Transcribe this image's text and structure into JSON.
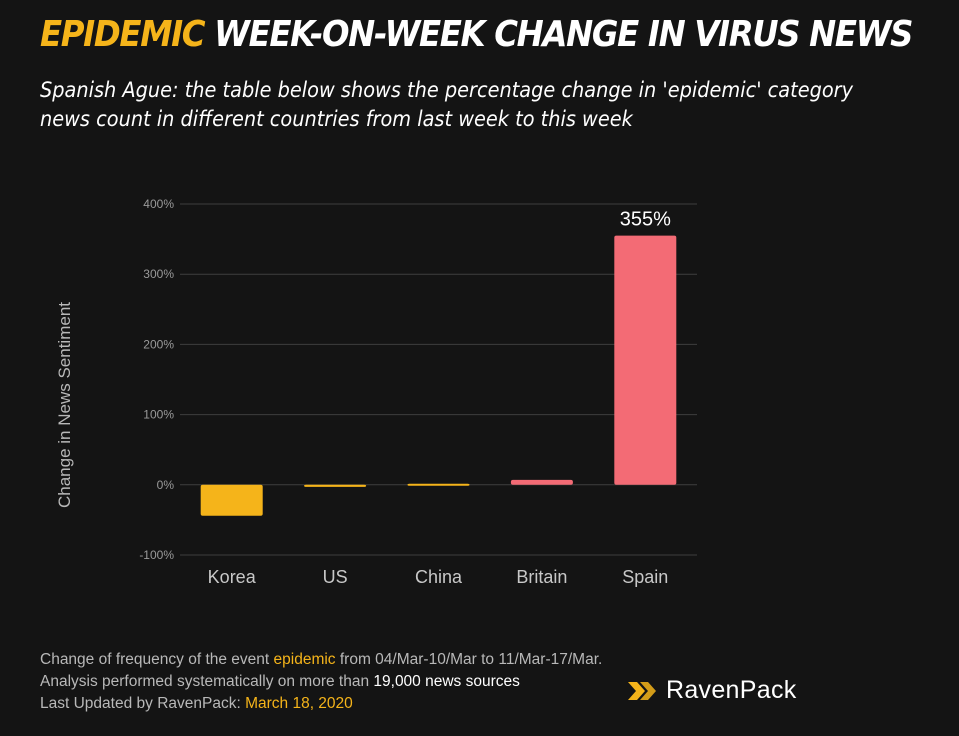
{
  "header": {
    "title_accent": "EPIDEMIC",
    "title_rest": "WEEK-ON-WEEK CHANGE IN VIRUS NEWS",
    "subtitle": "Spanish Ague: the table below shows the percentage change in 'epidemic' category news count in different countries from last week to this week"
  },
  "chart_data": {
    "type": "bar",
    "categories": [
      "Korea",
      "US",
      "China",
      "Britain",
      "Spain"
    ],
    "values": [
      -44,
      -3,
      -2,
      7,
      355
    ],
    "colors": [
      "#f5b41a",
      "#f5b41a",
      "#f5b41a",
      "#f36b75",
      "#f36b75"
    ],
    "ylabel": "Change in News Sentiment",
    "yticks": [
      "-100%",
      "0%",
      "100%",
      "200%",
      "300%",
      "400%"
    ],
    "ylim": [
      -100,
      400
    ],
    "data_labels": [
      {
        "category": "Spain",
        "text": "355%"
      }
    ],
    "grid": true
  },
  "footer": {
    "line1_pre": "Change of frequency of the event ",
    "line1_hl": "epidemic",
    "line1_post": " from 04/Mar-10/Mar to 11/Mar-17/Mar.",
    "line2_pre": "Analysis performed systematically on more than ",
    "line2_hl": "19,000 news sources",
    "line3_pre": "Last Updated by RavenPack: ",
    "line3_hl": "March 18, 2020"
  },
  "logo": {
    "text": "RavenPack",
    "icon": "ravenpack-chevron-icon",
    "color": "#f5b41a"
  }
}
